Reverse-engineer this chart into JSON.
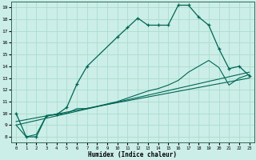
{
  "xlabel": "Humidex (Indice chaleur)",
  "bg_color": "#cceee8",
  "grid_color": "#aaddcc",
  "line_color": "#006655",
  "xlim": [
    -0.5,
    23.5
  ],
  "ylim": [
    7.5,
    19.5
  ],
  "xticks": [
    0,
    1,
    2,
    3,
    4,
    5,
    6,
    7,
    8,
    9,
    10,
    11,
    12,
    13,
    14,
    15,
    16,
    17,
    18,
    19,
    20,
    21,
    22,
    23
  ],
  "yticks": [
    8,
    9,
    10,
    11,
    12,
    13,
    14,
    15,
    16,
    17,
    18,
    19
  ],
  "line1_x": [
    0,
    1,
    2,
    3,
    4,
    5,
    6,
    7,
    10,
    11,
    12,
    13,
    14,
    15,
    16,
    17,
    18,
    19,
    20,
    21,
    22,
    23
  ],
  "line1_y": [
    10,
    8,
    8,
    9.8,
    9.9,
    10.5,
    12.5,
    14,
    16.5,
    17.3,
    18.1,
    17.5,
    17.5,
    17.5,
    19.2,
    19.2,
    18.2,
    17.5,
    15.5,
    13.8,
    14.0,
    13.2
  ],
  "line2_x": [
    0,
    1,
    2,
    3,
    4,
    5,
    6,
    7,
    8,
    9,
    10,
    11,
    12,
    13,
    14,
    15,
    16,
    17,
    18,
    19,
    20,
    21,
    22,
    23
  ],
  "line2_y": [
    9,
    8,
    8.2,
    9.8,
    9.9,
    10.0,
    10.4,
    10.4,
    10.6,
    10.8,
    11.0,
    11.3,
    11.6,
    11.9,
    12.1,
    12.4,
    12.8,
    13.5,
    14.0,
    14.5,
    13.9,
    12.4,
    13.0,
    13.3
  ],
  "line3_x": [
    0,
    23
  ],
  "line3_y": [
    9.0,
    13.5
  ],
  "line4_x": [
    0,
    23
  ],
  "line4_y": [
    9.3,
    13.0
  ]
}
